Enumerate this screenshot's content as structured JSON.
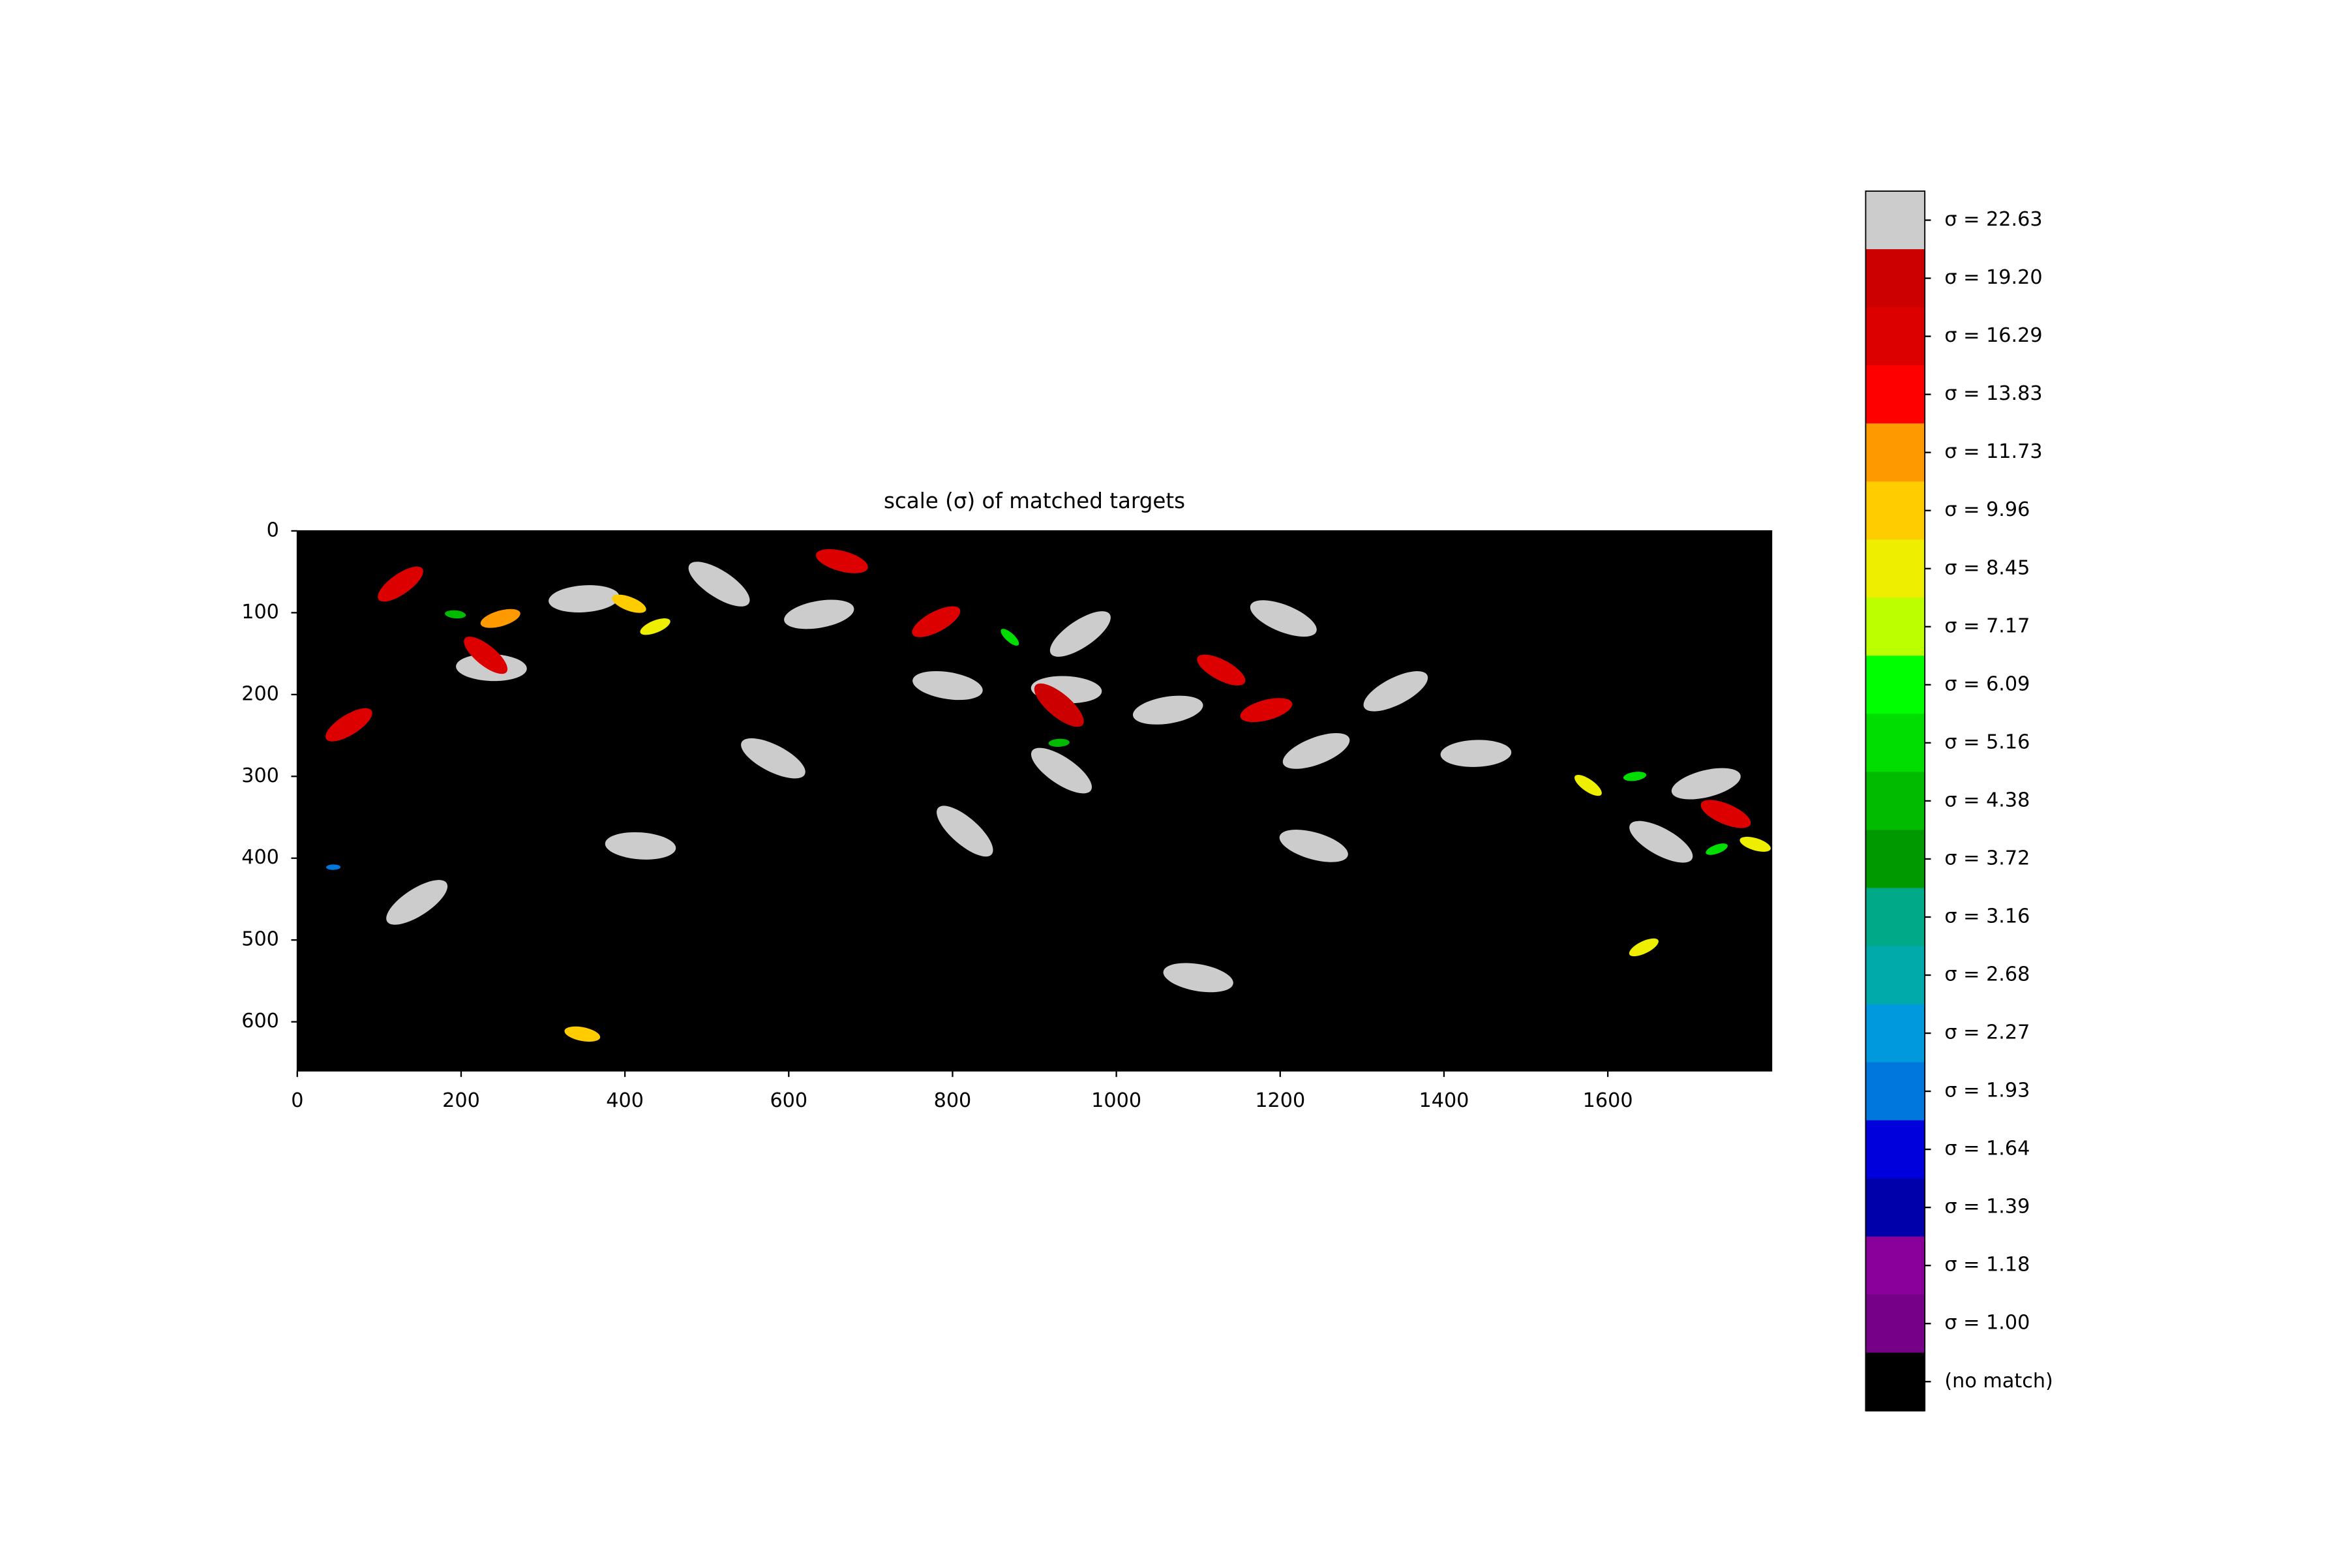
{
  "chart_data": {
    "type": "image",
    "title": "scale (σ) of matched targets",
    "xlim": [
      0,
      1800
    ],
    "ylim": [
      660,
      0
    ],
    "xticks": [
      0,
      200,
      400,
      600,
      800,
      1000,
      1200,
      1400,
      1600
    ],
    "yticks": [
      0,
      100,
      200,
      300,
      400,
      500,
      600
    ],
    "background": "#000000",
    "levels": [
      {
        "value": 22.63,
        "label": "σ = 22.63",
        "color": "#cccccc"
      },
      {
        "value": 19.2,
        "label": "σ = 19.20",
        "color": "#cc0000"
      },
      {
        "value": 16.29,
        "label": "σ = 16.29",
        "color": "#dd0000"
      },
      {
        "value": 13.83,
        "label": "σ = 13.83",
        "color": "#ff0000"
      },
      {
        "value": 11.73,
        "label": "σ = 11.73",
        "color": "#ff9900"
      },
      {
        "value": 9.96,
        "label": "σ = 9.96",
        "color": "#ffcc00"
      },
      {
        "value": 8.45,
        "label": "σ = 8.45",
        "color": "#eeee00"
      },
      {
        "value": 7.17,
        "label": "σ = 7.17",
        "color": "#bbff00"
      },
      {
        "value": 6.09,
        "label": "σ = 6.09",
        "color": "#00ff00"
      },
      {
        "value": 5.16,
        "label": "σ = 5.16",
        "color": "#00dd00"
      },
      {
        "value": 4.38,
        "label": "σ = 4.38",
        "color": "#00bb00"
      },
      {
        "value": 3.72,
        "label": "σ = 3.72",
        "color": "#009900"
      },
      {
        "value": 3.16,
        "label": "σ = 3.16",
        "color": "#00aa88"
      },
      {
        "value": 2.68,
        "label": "σ = 2.68",
        "color": "#00aaaa"
      },
      {
        "value": 2.27,
        "label": "σ = 2.27",
        "color": "#0099dd"
      },
      {
        "value": 1.93,
        "label": "σ = 1.93",
        "color": "#0077dd"
      },
      {
        "value": 1.64,
        "label": "σ = 1.64",
        "color": "#0000dd"
      },
      {
        "value": 1.39,
        "label": "σ = 1.39",
        "color": "#0000aa"
      },
      {
        "value": 1.18,
        "label": "σ = 1.18",
        "color": "#880099"
      },
      {
        "value": 1.0,
        "label": "σ = 1.00",
        "color": "#770088"
      },
      {
        "value": null,
        "label": "(no match)",
        "color": "#000000"
      }
    ],
    "points": [
      {
        "x": 126,
        "y": 65,
        "sigma": 16.29
      },
      {
        "x": 237,
        "y": 167,
        "sigma": 22.63
      },
      {
        "x": 230,
        "y": 152,
        "sigma": 16.29
      },
      {
        "x": 350,
        "y": 83,
        "sigma": 22.63
      },
      {
        "x": 515,
        "y": 65,
        "sigma": 22.63
      },
      {
        "x": 637,
        "y": 102,
        "sigma": 22.63
      },
      {
        "x": 581,
        "y": 278,
        "sigma": 22.63
      },
      {
        "x": 248,
        "y": 107,
        "sigma": 11.73
      },
      {
        "x": 405,
        "y": 89,
        "sigma": 9.96
      },
      {
        "x": 437,
        "y": 117,
        "sigma": 8.45
      },
      {
        "x": 665,
        "y": 37,
        "sigma": 16.29
      },
      {
        "x": 780,
        "y": 111,
        "sigma": 16.29
      },
      {
        "x": 794,
        "y": 189,
        "sigma": 22.63
      },
      {
        "x": 956,
        "y": 126,
        "sigma": 22.63
      },
      {
        "x": 939,
        "y": 194,
        "sigma": 22.63
      },
      {
        "x": 930,
        "y": 213,
        "sigma": 19.2
      },
      {
        "x": 930,
        "y": 259,
        "sigma": 4.38
      },
      {
        "x": 933,
        "y": 293,
        "sigma": 22.63
      },
      {
        "x": 1063,
        "y": 219,
        "sigma": 22.63
      },
      {
        "x": 1128,
        "y": 170,
        "sigma": 16.29
      },
      {
        "x": 1183,
        "y": 219,
        "sigma": 16.29
      },
      {
        "x": 1204,
        "y": 107,
        "sigma": 22.63
      },
      {
        "x": 1244,
        "y": 269,
        "sigma": 22.63
      },
      {
        "x": 1241,
        "y": 385,
        "sigma": 22.63
      },
      {
        "x": 1341,
        "y": 196,
        "sigma": 22.63
      },
      {
        "x": 1100,
        "y": 546,
        "sigma": 22.63
      },
      {
        "x": 146,
        "y": 454,
        "sigma": 22.63
      },
      {
        "x": 419,
        "y": 385,
        "sigma": 22.63
      },
      {
        "x": 815,
        "y": 367,
        "sigma": 22.63
      },
      {
        "x": 1439,
        "y": 272,
        "sigma": 22.63
      },
      {
        "x": 1576,
        "y": 311,
        "sigma": 8.45
      },
      {
        "x": 1633,
        "y": 300,
        "sigma": 5.16
      },
      {
        "x": 1665,
        "y": 380,
        "sigma": 22.63
      },
      {
        "x": 1720,
        "y": 309,
        "sigma": 22.63
      },
      {
        "x": 1744,
        "y": 346,
        "sigma": 16.29
      },
      {
        "x": 1733,
        "y": 389,
        "sigma": 5.16
      },
      {
        "x": 1780,
        "y": 383,
        "sigma": 8.45
      },
      {
        "x": 1644,
        "y": 509,
        "sigma": 8.45
      },
      {
        "x": 348,
        "y": 615,
        "sigma": 9.96
      },
      {
        "x": 63,
        "y": 237,
        "sigma": 16.29
      },
      {
        "x": 193,
        "y": 102,
        "sigma": 4.38
      },
      {
        "x": 870,
        "y": 130,
        "sigma": 5.16
      },
      {
        "x": 44,
        "y": 411,
        "sigma": 1.93
      }
    ]
  }
}
